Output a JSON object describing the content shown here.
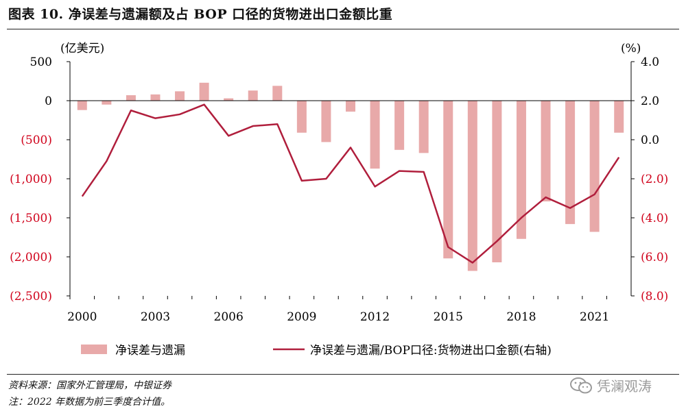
{
  "header": {
    "title": "图表 10. 净误差与遗漏额及占 BOP 口径的货物进出口金额比重"
  },
  "chart_data": {
    "type": "bar",
    "categories": [
      "2000",
      "2001",
      "2002",
      "2003",
      "2004",
      "2005",
      "2006",
      "2007",
      "2008",
      "2009",
      "2010",
      "2011",
      "2012",
      "2013",
      "2014",
      "2015",
      "2016",
      "2017",
      "2018",
      "2019",
      "2020",
      "2021",
      "2022"
    ],
    "x_tick_labels": [
      "2000",
      "2003",
      "2006",
      "2009",
      "2012",
      "2015",
      "2018",
      "2021"
    ],
    "left_axis": {
      "unit": "(亿美元)",
      "ylim": [
        -2500,
        500
      ],
      "ticks": [
        500,
        0,
        -500,
        -1000,
        -1500,
        -2000,
        -2500
      ],
      "tick_labels": [
        "500",
        "0",
        "(500)",
        "(1,000)",
        "(1,500)",
        "(2,000)",
        "(2,500)"
      ]
    },
    "right_axis": {
      "unit": "(%)",
      "ylim": [
        -8,
        4
      ],
      "ticks": [
        4,
        2,
        0,
        -2,
        -4,
        -6,
        -8
      ],
      "tick_labels": [
        "4.0",
        "2.0",
        "0.0",
        "(2.0)",
        "(4.0)",
        "(6.0)",
        "(8.0)"
      ]
    },
    "series": [
      {
        "name": "净误差与遗漏",
        "type": "bar",
        "axis": "left",
        "color": "#e8a9a9",
        "values": [
          -120,
          -50,
          70,
          80,
          120,
          230,
          30,
          130,
          190,
          -410,
          -530,
          -140,
          -870,
          -630,
          -670,
          -2020,
          -2180,
          -2070,
          -1770,
          -1290,
          -1580,
          -1680,
          -410
        ]
      },
      {
        "name": "净误差与遗漏/BOP口径:货物进出口金额(右轴)",
        "type": "line",
        "axis": "right",
        "color": "#b01e3c",
        "values": [
          -2.9,
          -1.1,
          1.5,
          1.1,
          1.3,
          1.8,
          0.2,
          0.7,
          0.8,
          -2.1,
          -2.0,
          -0.4,
          -2.4,
          -1.6,
          -1.65,
          -5.5,
          -6.3,
          -5.2,
          -4.0,
          -2.95,
          -3.5,
          -2.8,
          -0.9
        ]
      }
    ],
    "grid": false,
    "legend_position": "bottom"
  },
  "legend": {
    "bar_label": "净误差与遗漏",
    "line_label": "净误差与遗漏/BOP口径:货物进出口金额(右轴)"
  },
  "footer": {
    "source": "资料来源：国家外汇管理局，中银证券",
    "note": "注：2022 年数据为前三季度合计值。",
    "watermark": "凭澜观涛"
  },
  "colors": {
    "bar": "#e8a9a9",
    "line": "#b01e3c",
    "negative_tick": "#d0021b",
    "axis": "#000000"
  }
}
